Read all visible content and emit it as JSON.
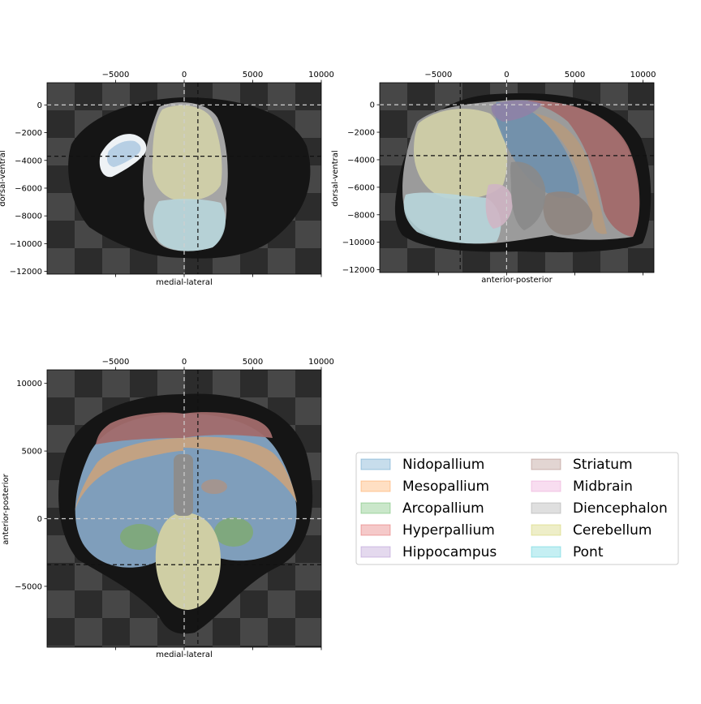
{
  "figure": {
    "background": "#ffffff"
  },
  "chart_data": [
    {
      "type": "heatmap",
      "panel": "coronal-slice",
      "xlabel": "medial-lateral",
      "ylabel": "dorsal-ventral",
      "xlim": [
        -10000,
        10000
      ],
      "ylim": [
        -12200,
        1600
      ],
      "xticks": [
        -5000,
        0,
        5000,
        10000
      ],
      "xtick_labels": [
        "−5000",
        "0",
        "5000",
        "10000"
      ],
      "yticks": [
        0,
        -2000,
        -4000,
        -6000,
        -8000,
        -10000,
        -12000
      ],
      "ytick_labels": [
        "0",
        "−2000",
        "−4000",
        "−6000",
        "−8000",
        "−10000",
        "−12000"
      ],
      "crosshair": {
        "x": [
          0,
          1000
        ],
        "y": [
          0,
          -3700
        ]
      }
    },
    {
      "type": "heatmap",
      "panel": "sagittal-slice",
      "xlabel": "anterior-posterior",
      "ylabel": "dorsal-ventral",
      "xlim": [
        -9300,
        10800
      ],
      "ylim": [
        -12200,
        1600
      ],
      "xticks": [
        -5000,
        0,
        5000,
        10000
      ],
      "xtick_labels": [
        "−5000",
        "0",
        "5000",
        "10000"
      ],
      "yticks": [
        0,
        -2000,
        -4000,
        -6000,
        -8000,
        -10000,
        -12000
      ],
      "ytick_labels": [
        "0",
        "−2000",
        "−4000",
        "−6000",
        "−8000",
        "−10000",
        "−12000"
      ],
      "crosshair": {
        "x": [
          -3400,
          0
        ],
        "y": [
          0,
          -3700
        ]
      }
    },
    {
      "type": "heatmap",
      "panel": "horizontal-slice",
      "xlabel": "medial-lateral",
      "ylabel": "anterior-posterior",
      "xlim": [
        -10000,
        10000
      ],
      "ylim": [
        -9500,
        11000
      ],
      "xticks": [
        -5000,
        0,
        5000,
        10000
      ],
      "xtick_labels": [
        "−5000",
        "0",
        "5000",
        "10000"
      ],
      "yticks": [
        10000,
        5000,
        0,
        -5000
      ],
      "ytick_labels": [
        "10000",
        "5000",
        "0",
        "−5000"
      ],
      "crosshair": {
        "x": [
          0,
          1000
        ],
        "y": [
          0,
          -3400
        ]
      }
    }
  ],
  "legend": {
    "placement": "right-middle",
    "columns": 2,
    "items": [
      {
        "label": "Nidopallium",
        "color": "#1f77b4"
      },
      {
        "label": "Mesopallium",
        "color": "#ff7f0e"
      },
      {
        "label": "Arcopallium",
        "color": "#2ca02c"
      },
      {
        "label": "Hyperpallium",
        "color": "#d62728"
      },
      {
        "label": "Hippocampus",
        "color": "#9467bd"
      },
      {
        "label": "Striatum",
        "color": "#8c564b"
      },
      {
        "label": "Midbrain",
        "color": "#e377c2"
      },
      {
        "label": "Diencephalon",
        "color": "#7f7f7f"
      },
      {
        "label": "Cerebellum",
        "color": "#bcbd22"
      },
      {
        "label": "Pont",
        "color": "#17becf"
      }
    ]
  }
}
